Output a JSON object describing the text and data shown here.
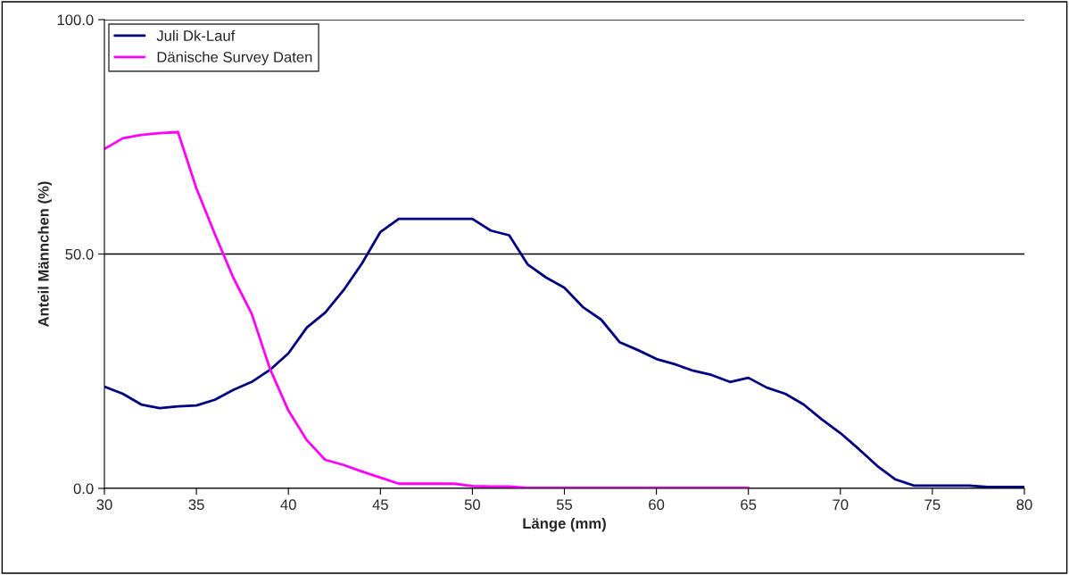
{
  "chart_data": {
    "type": "line",
    "xlabel": "Länge (mm)",
    "ylabel": "Anteil Männchen (%)",
    "xlim": [
      30,
      80
    ],
    "xticks": [
      30,
      35,
      40,
      45,
      50,
      55,
      60,
      65,
      70,
      75,
      80
    ],
    "ylim": [
      0,
      100
    ],
    "yticks": [
      {
        "value": 0,
        "label": "0.0"
      },
      {
        "value": 50,
        "label": "50.0"
      },
      {
        "value": 100,
        "label": "100.0"
      }
    ],
    "grid": "y",
    "legend": "top left",
    "marker": "none",
    "line_style": "solid",
    "series": [
      {
        "name": "Juli Dk-Lauf",
        "color": "#000080",
        "x": [
          30,
          31,
          32,
          33,
          34,
          35,
          36,
          37,
          38,
          39,
          40,
          41,
          42,
          43,
          44,
          45,
          46,
          47,
          48,
          49,
          50,
          51,
          52,
          53,
          54,
          55,
          56,
          57,
          58,
          59,
          60,
          61,
          62,
          63,
          64,
          65,
          66,
          67,
          68,
          69,
          70,
          71,
          72,
          73,
          74,
          75,
          76,
          77,
          78,
          79,
          80
        ],
        "values": [
          21.7,
          20.2,
          17.9,
          17.1,
          17.5,
          17.7,
          18.9,
          21,
          22.7,
          25.3,
          28.8,
          34.3,
          37.5,
          42.3,
          48,
          54.7,
          57.5,
          57.5,
          57.5,
          57.5,
          57.5,
          55,
          54,
          47.8,
          45,
          42.8,
          38.7,
          36,
          31.2,
          29.5,
          27.6,
          26.5,
          25.1,
          24.2,
          22.7,
          23.6,
          21.5,
          20.2,
          17.9,
          14.7,
          11.8,
          8.4,
          4.8,
          1.9,
          0.6,
          0.6,
          0.6,
          0.6,
          0.3,
          0.3,
          0.3
        ]
      },
      {
        "name": "Dänische Survey Daten",
        "color": "#ff00ff",
        "x": [
          30,
          31,
          32,
          33,
          34,
          35,
          36,
          37,
          38,
          39,
          40,
          41,
          42,
          43,
          44,
          45,
          46,
          47,
          48,
          49,
          50,
          51,
          52,
          53,
          54,
          55,
          56,
          57,
          58,
          59,
          60,
          61,
          62,
          63,
          64,
          65
        ],
        "values": [
          72.4,
          74.7,
          75.4,
          75.8,
          76,
          64,
          54.3,
          45,
          37.3,
          25.5,
          16.6,
          10.3,
          6.1,
          5,
          3.6,
          2.3,
          1,
          1,
          1,
          1,
          0.5,
          0.4,
          0.4,
          0.1,
          0.1,
          0.1,
          0.1,
          0.1,
          0.1,
          0.1,
          0.1,
          0.1,
          0.1,
          0.1,
          0.1,
          0.1
        ]
      }
    ]
  }
}
